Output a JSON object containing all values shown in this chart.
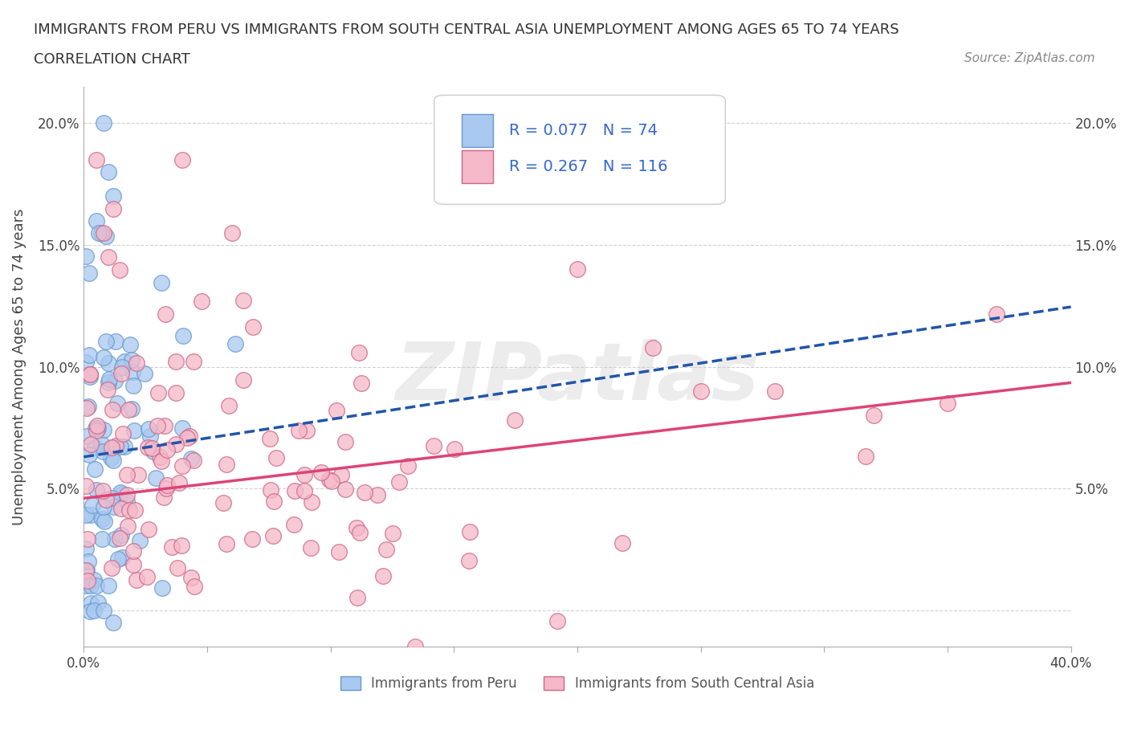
{
  "title_line1": "IMMIGRANTS FROM PERU VS IMMIGRANTS FROM SOUTH CENTRAL ASIA UNEMPLOYMENT AMONG AGES 65 TO 74 YEARS",
  "title_line2": "CORRELATION CHART",
  "source_text": "Source: ZipAtlas.com",
  "ylabel": "Unemployment Among Ages 65 to 74 years",
  "xlim": [
    0.0,
    0.4
  ],
  "ylim": [
    -0.015,
    0.215
  ],
  "blue_color": "#a8c8f0",
  "blue_edge_color": "#6699cc",
  "pink_color": "#f5b8c8",
  "pink_edge_color": "#cc6688",
  "blue_line_color": "#2255aa",
  "pink_line_color": "#dd4477",
  "blue_R": 0.077,
  "blue_N": 74,
  "pink_R": 0.267,
  "pink_N": 116,
  "watermark": "ZIPatlas",
  "grid_color": "#cccccc",
  "background_color": "#ffffff"
}
